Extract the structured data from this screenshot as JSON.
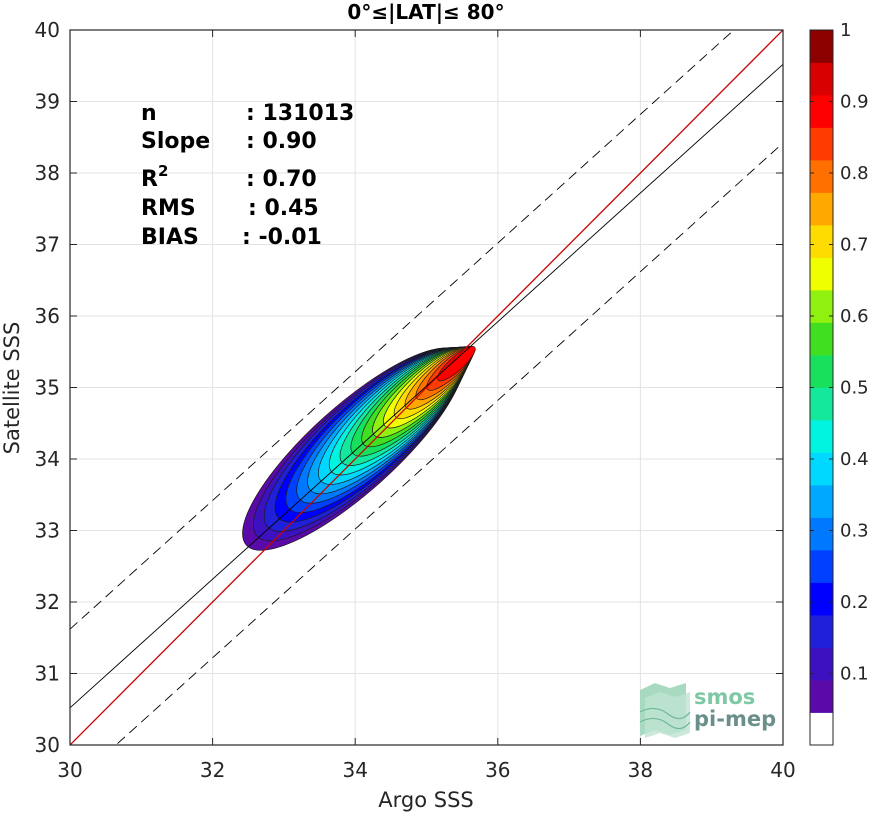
{
  "chart_data": {
    "type": "heatmap",
    "title": "0°≤|LAT|≤ 80°",
    "xlabel": "Argo SSS",
    "ylabel": "Satellite SSS",
    "xlim": [
      30,
      40
    ],
    "ylim": [
      30,
      40
    ],
    "xticks": [
      30,
      32,
      34,
      36,
      38,
      40
    ],
    "yticks": [
      30,
      31,
      32,
      33,
      34,
      35,
      36,
      37,
      38,
      39,
      40
    ],
    "grid": true,
    "stats": [
      {
        "label": "n",
        "value": ": 131013"
      },
      {
        "label": "Slope",
        "value": ": 0.90"
      },
      {
        "label": "R",
        "sup": "2",
        "value": ": 0.70"
      },
      {
        "label": "RMS",
        "value": ": 0.45"
      },
      {
        "label": "BIAS",
        "value": ": -0.01"
      }
    ],
    "density": {
      "center": [
        35.5,
        35.4
      ],
      "peak": 1.0,
      "contour_levels": [
        0.05,
        0.1,
        0.15,
        0.2,
        0.25,
        0.3,
        0.35,
        0.4,
        0.45,
        0.5,
        0.55,
        0.6,
        0.65,
        0.7,
        0.75,
        0.8,
        0.85,
        0.9,
        0.95
      ]
    },
    "reference_lines": [
      {
        "type": "identity",
        "slope": 1.0,
        "intercept": 0,
        "color": "#cc0000",
        "style": "solid"
      },
      {
        "type": "fit",
        "slope": 0.9,
        "intercept": 3.52,
        "color": "#000000",
        "style": "solid"
      },
      {
        "type": "fit_plus_bound",
        "slope": 0.9,
        "intercept": 4.62,
        "color": "#000000",
        "style": "dashed"
      },
      {
        "type": "fit_minus_bound",
        "slope": 0.9,
        "intercept": 2.42,
        "color": "#000000",
        "style": "dashed"
      }
    ],
    "colorbar": {
      "min": 0,
      "max": 1,
      "ticks": [
        0.1,
        0.2,
        0.3,
        0.4,
        0.5,
        0.6,
        0.7,
        0.8,
        0.9,
        1
      ],
      "tick_labels": [
        "0.1",
        "0.2",
        "0.3",
        "0.4",
        "0.5",
        "0.6",
        "0.7",
        "0.8",
        "0.9",
        "1"
      ],
      "bands": [
        "#ffffff",
        "#5a0aa8",
        "#3c12c0",
        "#2020d8",
        "#0000ff",
        "#0040ff",
        "#0078ff",
        "#00a8ff",
        "#00d8ff",
        "#00f4e0",
        "#14e89c",
        "#18e05c",
        "#40e020",
        "#90f010",
        "#f0ff00",
        "#ffdc00",
        "#ffa800",
        "#ff7000",
        "#ff3c00",
        "#ff0000",
        "#d80000",
        "#8c0000"
      ]
    }
  },
  "logo": {
    "line1": "smos",
    "line2": "pi-mep"
  }
}
